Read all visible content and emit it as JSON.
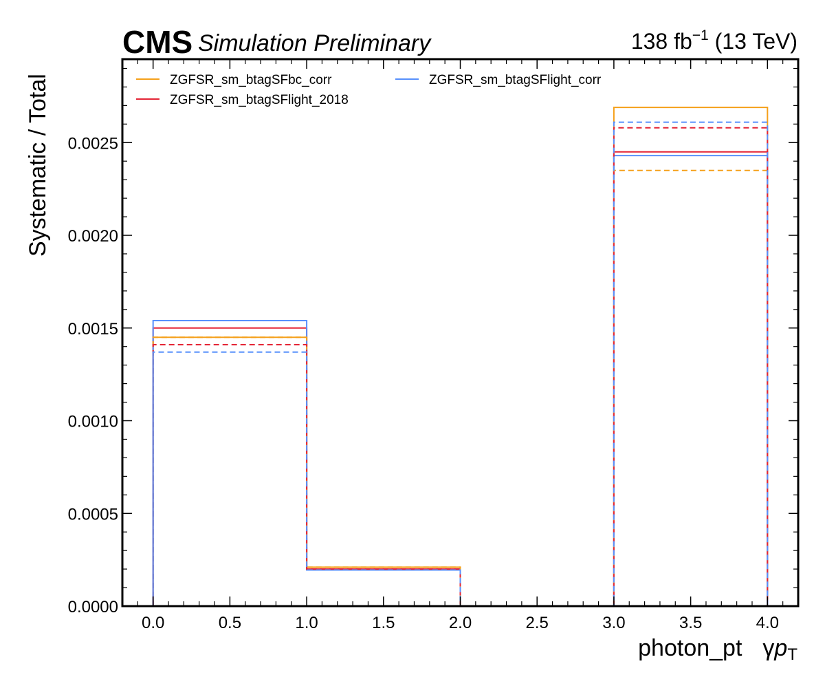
{
  "header": {
    "experiment": "CMS",
    "status": "Simulation Preliminary",
    "lumi_value": "138 fb",
    "lumi_exp": "−1",
    "energy": " (13 TeV)"
  },
  "chart_data": {
    "type": "histogram-step",
    "xlabel_main": "photon_pt",
    "xlabel_sym": "γ",
    "xlabel_p": "p",
    "xlabel_sub": "T",
    "ylabel": "Systematic / Total",
    "xlim": [
      -0.2,
      4.2
    ],
    "ylim": [
      0,
      0.00295
    ],
    "xticks": [
      0.0,
      0.5,
      1.0,
      1.5,
      2.0,
      2.5,
      3.0,
      3.5,
      4.0
    ],
    "xtick_labels": [
      "0.0",
      "0.5",
      "1.0",
      "1.5",
      "2.0",
      "2.5",
      "3.0",
      "3.5",
      "4.0"
    ],
    "yticks": [
      0,
      0.0005,
      0.001,
      0.0015,
      0.002,
      0.0025
    ],
    "ytick_labels": [
      "0.0000",
      "0.0005",
      "0.0010",
      "0.0015",
      "0.0020",
      "0.0025"
    ],
    "bin_edges": [
      0,
      1,
      2,
      3,
      4
    ],
    "legend_position": "top-left",
    "series": [
      {
        "name": "ZGFSR_sm_btagSFbc_corr",
        "variant": "up",
        "color": "#f5a01a",
        "dashed": false,
        "values": [
          0.00145,
          0.00021,
          0.0,
          0.00269
        ]
      },
      {
        "name": "ZGFSR_sm_btagSFlight_2018",
        "variant": "up",
        "color": "#e42536",
        "dashed": false,
        "values": [
          0.0015,
          0.0002,
          0.0,
          0.00245
        ]
      },
      {
        "name": "ZGFSR_sm_btagSFlight_corr",
        "variant": "up",
        "color": "#5790fc",
        "dashed": false,
        "values": [
          0.00154,
          0.000195,
          0.0,
          0.00243
        ]
      },
      {
        "name": "ZGFSR_sm_btagSFbc_corr",
        "variant": "down",
        "color": "#f5a01a",
        "dashed": true,
        "values": [
          0.00145,
          0.00021,
          0.0,
          0.00235
        ]
      },
      {
        "name": "ZGFSR_sm_btagSFlight_2018",
        "variant": "down",
        "color": "#e42536",
        "dashed": true,
        "values": [
          0.00141,
          0.0002,
          0.0,
          0.00258
        ]
      },
      {
        "name": "ZGFSR_sm_btagSFlight_corr",
        "variant": "down",
        "color": "#5790fc",
        "dashed": true,
        "values": [
          0.00137,
          0.000195,
          0.0,
          0.00261
        ]
      }
    ]
  }
}
